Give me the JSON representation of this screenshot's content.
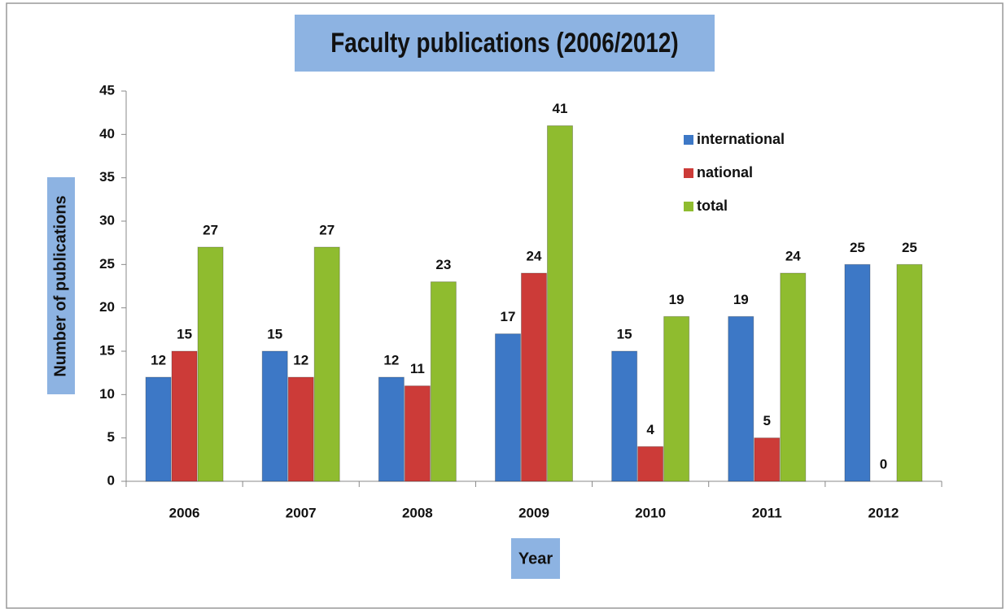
{
  "chart_data": {
    "type": "bar",
    "title": "Faculty publications (2006/2012)",
    "x_label": "Year",
    "y_label": "Number of publications",
    "categories": [
      "2006",
      "2007",
      "2008",
      "2009",
      "2010",
      "2011",
      "2012"
    ],
    "series": [
      {
        "name": "international",
        "color": "#3d78c6",
        "values": [
          12,
          15,
          12,
          17,
          15,
          19,
          25
        ]
      },
      {
        "name": "national",
        "color": "#cc3b38",
        "values": [
          15,
          12,
          11,
          24,
          4,
          5,
          0
        ]
      },
      {
        "name": "total",
        "color": "#8fbc2f",
        "values": [
          27,
          27,
          23,
          41,
          19,
          24,
          25
        ]
      }
    ],
    "ylim": [
      0,
      45
    ],
    "yticks": [
      0,
      5,
      10,
      15,
      20,
      25,
      30,
      35,
      40,
      45
    ]
  }
}
